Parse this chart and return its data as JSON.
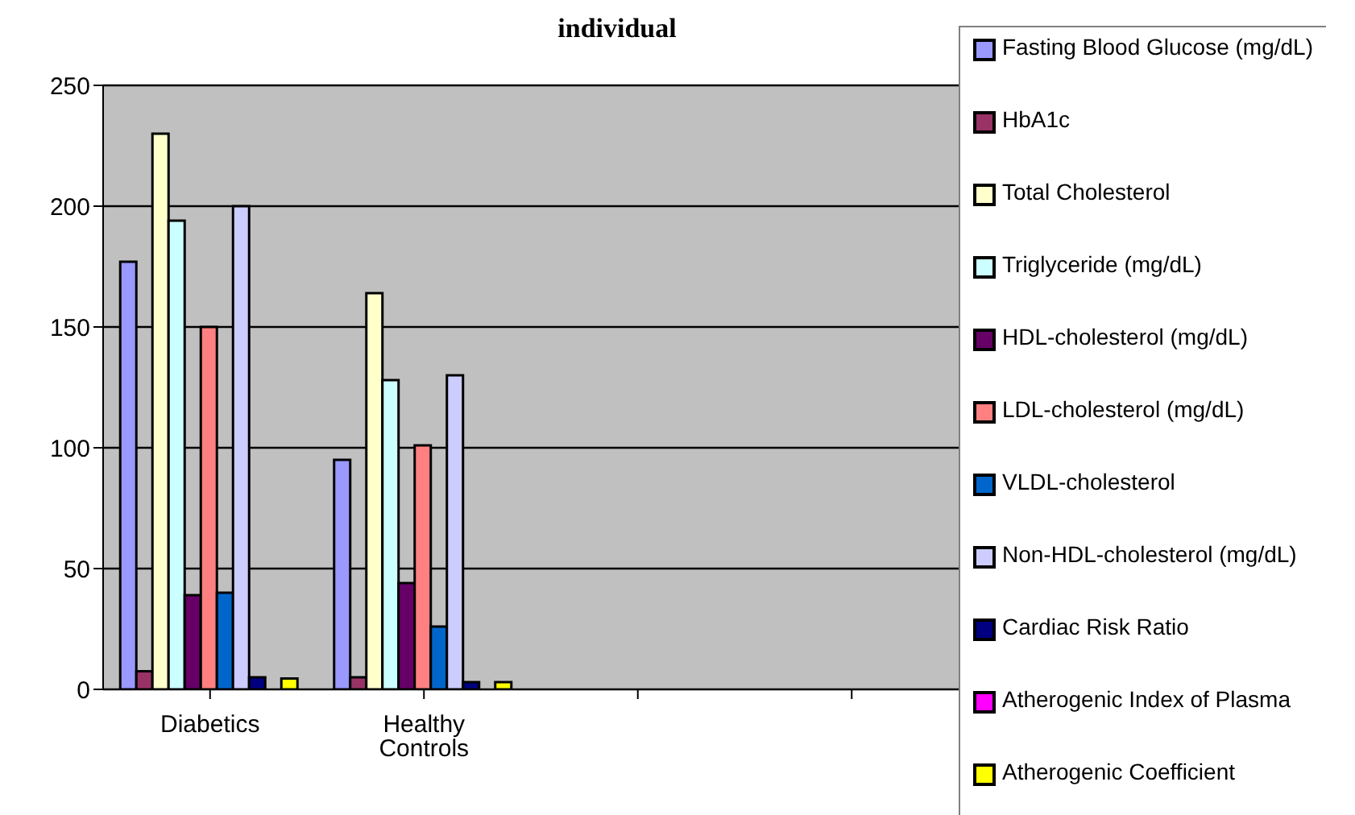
{
  "chart_data": {
    "type": "bar",
    "title": "individual",
    "categories": [
      "Diabetics",
      "Healthy Controls",
      null,
      null
    ],
    "series": [
      {
        "name": "Fasting Blood Glucose (mg/dL)",
        "color": "#9999ff",
        "values": [
          177,
          95,
          null,
          null
        ]
      },
      {
        "name": "HbA1c",
        "color": "#993366",
        "values": [
          7.5,
          5,
          null,
          null
        ]
      },
      {
        "name": "Total Cholesterol",
        "color": "#ffffcc",
        "values": [
          230,
          164,
          null,
          null
        ]
      },
      {
        "name": "Triglyceride (mg/dL)",
        "color": "#ccffff",
        "values": [
          194,
          128,
          null,
          null
        ]
      },
      {
        "name": "HDL-cholesterol (mg/dL)",
        "color": "#660066",
        "values": [
          39,
          44,
          null,
          null
        ]
      },
      {
        "name": "LDL-cholesterol (mg/dL)",
        "color": "#ff8080",
        "values": [
          150,
          101,
          null,
          null
        ]
      },
      {
        "name": "VLDL-cholesterol",
        "color": "#0066cc",
        "values": [
          40,
          26,
          null,
          null
        ]
      },
      {
        "name": "Non-HDL-cholesterol (mg/dL)",
        "color": "#ccccff",
        "values": [
          200,
          130,
          null,
          null
        ]
      },
      {
        "name": "Cardiac Risk Ratio",
        "color": "#000080",
        "values": [
          5,
          3,
          null,
          null
        ]
      },
      {
        "name": "Atherogenic Index of Plasma",
        "color": "#ff00ff",
        "values": [
          null,
          null,
          null,
          null
        ]
      },
      {
        "name": "Atherogenic Coefficient",
        "color": "#ffff00",
        "values": [
          4.5,
          3,
          null,
          null
        ]
      }
    ],
    "ylim": [
      0,
      250
    ],
    "yticks": [
      0,
      50,
      100,
      150,
      200,
      250
    ],
    "grid": "y",
    "legend": "right"
  }
}
